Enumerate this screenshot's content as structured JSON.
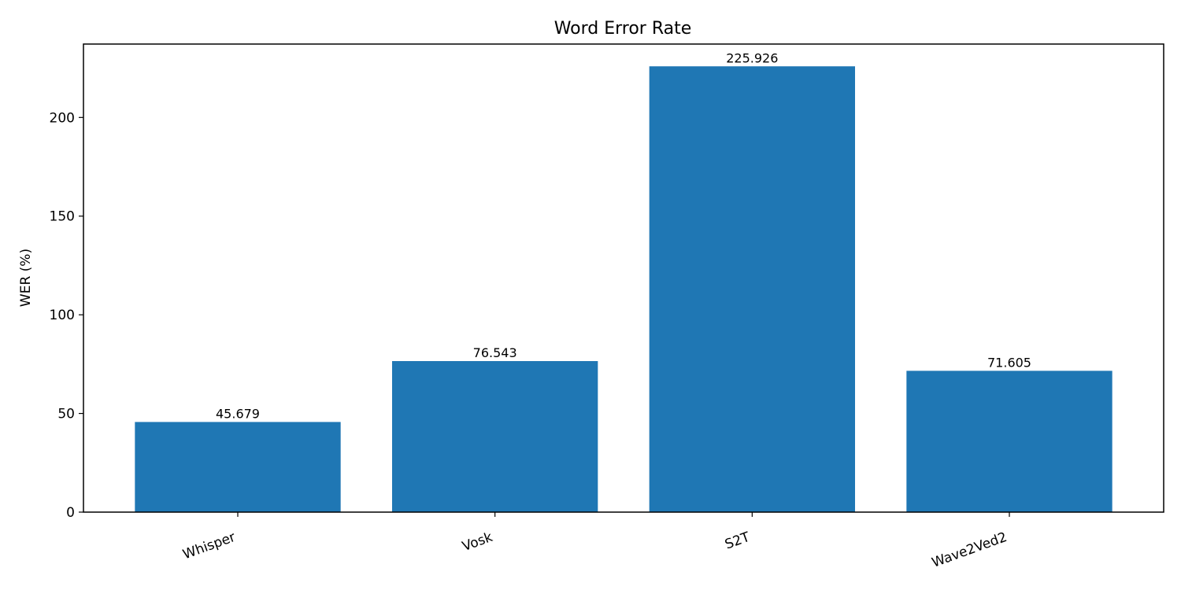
{
  "chart_data": {
    "type": "bar",
    "title": "Word Error Rate",
    "xlabel": "",
    "ylabel": "WER (%)",
    "categories": [
      "Whisper",
      "Vosk",
      "S2T",
      "Wave2Ved2"
    ],
    "values": [
      45.679,
      76.543,
      225.926,
      71.605
    ],
    "value_labels": [
      "45.679",
      "76.543",
      "225.926",
      "71.605"
    ],
    "ylim": [
      0,
      237.2
    ],
    "yticks": [
      0,
      50,
      100,
      150,
      200
    ],
    "ytick_labels": [
      "0",
      "50",
      "100",
      "150",
      "200"
    ],
    "bar_color": "#1f77b4",
    "grid": false,
    "legend": "none",
    "xtick_rotation": "rotated ~20 degrees"
  }
}
